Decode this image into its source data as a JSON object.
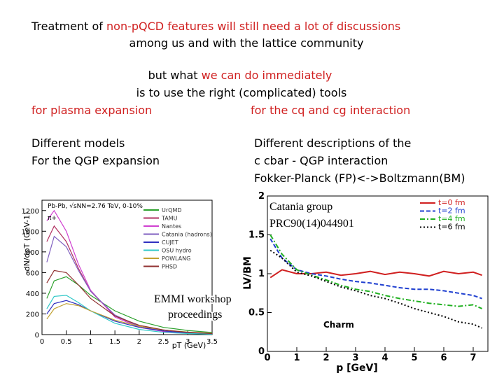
{
  "intro": [
    [
      {
        "text": "Treatment of ",
        "color": "#000000"
      },
      {
        "text": "non-pQCD features will still need a lot of discussions",
        "color": "#d02020"
      }
    ],
    [
      {
        "text": "among us and with the lattice community",
        "color": "#000000"
      }
    ]
  ],
  "proposal": [
    [
      {
        "text": "but what ",
        "color": "#000000"
      },
      {
        "text": "we can do immediately",
        "color": "#d02020"
      }
    ],
    [
      {
        "text": "is to use the right (complicated)  tools",
        "color": "#000000"
      }
    ]
  ],
  "left": {
    "heading": {
      "text": "for plasma expansion",
      "color": "#d02020"
    },
    "description": [
      "Different models",
      "For the QGP expansion"
    ]
  },
  "right": {
    "heading": {
      "text": "for the cq and cg interaction",
      "color": "#d02020"
    },
    "description": [
      "Different descriptions of the",
      "c cbar - QGP interaction",
      "Fokker-Planck (FP)<->Boltzmann(BM)"
    ]
  },
  "charts": [
    {
      "type": "line",
      "title": "Pb-Pb, √sNN=2.76 TeV, 0-10%",
      "subtitle": "π+",
      "x_label": "pT (GeV)",
      "y_label": "dN/dpT (GeV-1)",
      "annotation": [
        "EMMI workshop",
        "proceedings"
      ],
      "x": [
        0.1,
        0.25,
        0.5,
        0.75,
        1,
        1.5,
        2,
        2.5,
        3,
        3.5
      ],
      "series": [
        {
          "name": "UrQMD",
          "color": "#2ca02c",
          "dash": "solid",
          "values": [
            350,
            520,
            560,
            480,
            380,
            230,
            130,
            70,
            40,
            20
          ]
        },
        {
          "name": "TAMU",
          "color": "#b03060",
          "dash": "solid",
          "values": [
            900,
            1050,
            900,
            640,
            420,
            180,
            80,
            35,
            15,
            8
          ]
        },
        {
          "name": "Nantes",
          "color": "#d040d0",
          "dash": "solid",
          "values": [
            1100,
            1200,
            1000,
            680,
            430,
            170,
            70,
            30,
            12,
            5
          ]
        },
        {
          "name": "Catania (hadrons)",
          "color": "#8060c0",
          "dash": "solid",
          "values": [
            700,
            950,
            850,
            620,
            420,
            190,
            80,
            35,
            15,
            7
          ]
        },
        {
          "name": "CUJET",
          "color": "#3030c0",
          "dash": "solid",
          "values": [
            200,
            300,
            330,
            290,
            230,
            130,
            70,
            35,
            18,
            9
          ]
        },
        {
          "name": "OSU hydro",
          "color": "#30c8c8",
          "dash": "solid",
          "values": [
            250,
            370,
            380,
            310,
            230,
            110,
            50,
            22,
            10,
            4
          ]
        },
        {
          "name": "POWLANG",
          "color": "#c0a030",
          "dash": "solid",
          "values": [
            150,
            250,
            300,
            280,
            230,
            140,
            80,
            45,
            25,
            13
          ]
        },
        {
          "name": "PHSD",
          "color": "#903030",
          "dash": "solid",
          "values": [
            500,
            620,
            600,
            480,
            350,
            180,
            90,
            45,
            22,
            10
          ]
        }
      ],
      "xlim": [
        0,
        3.5
      ],
      "xticks": [
        0,
        0.5,
        1,
        1.5,
        2,
        2.5,
        3,
        3.5
      ],
      "ylim": [
        0,
        1300
      ],
      "yticks": [
        0,
        200,
        400,
        600,
        800,
        1000,
        1200
      ]
    },
    {
      "type": "line",
      "x_label": "p [GeV]",
      "y_label": "LV/BM",
      "inner_label": "Charm",
      "annotation": [
        "Catania group",
        "PRC90(14)044901"
      ],
      "x": [
        0.1,
        0.5,
        1,
        1.5,
        2,
        2.5,
        3,
        3.5,
        4,
        4.5,
        5,
        5.5,
        6,
        6.5,
        7,
        7.3
      ],
      "series": [
        {
          "name": "t=0 fm",
          "color": "#d02020",
          "dash": "solid",
          "values": [
            0.95,
            1.05,
            1.0,
            1.0,
            1.02,
            0.98,
            1.0,
            1.03,
            0.99,
            1.02,
            1.0,
            0.97,
            1.03,
            1.0,
            1.02,
            0.98
          ]
        },
        {
          "name": "t=2 fm",
          "color": "#2040d0",
          "dash": "dashed",
          "values": [
            1.45,
            1.2,
            1.05,
            1.0,
            0.97,
            0.93,
            0.9,
            0.88,
            0.85,
            0.82,
            0.8,
            0.8,
            0.78,
            0.75,
            0.72,
            0.68
          ]
        },
        {
          "name": "t=4 fm",
          "color": "#20b020",
          "dash": "dashdot",
          "values": [
            1.5,
            1.25,
            1.05,
            0.98,
            0.92,
            0.85,
            0.8,
            0.77,
            0.72,
            0.68,
            0.65,
            0.62,
            0.6,
            0.58,
            0.6,
            0.55
          ]
        },
        {
          "name": "t=6 fm",
          "color": "#000000",
          "dash": "dotted",
          "values": [
            1.3,
            1.2,
            1.02,
            0.97,
            0.9,
            0.83,
            0.78,
            0.72,
            0.68,
            0.62,
            0.55,
            0.5,
            0.45,
            0.38,
            0.35,
            0.3
          ]
        }
      ],
      "xlim": [
        0,
        7.5
      ],
      "xticks": [
        0,
        1,
        2,
        3,
        4,
        5,
        6,
        7
      ],
      "ylim": [
        0,
        2
      ],
      "yticks": [
        0,
        0.5,
        1,
        1.5,
        2
      ]
    }
  ]
}
